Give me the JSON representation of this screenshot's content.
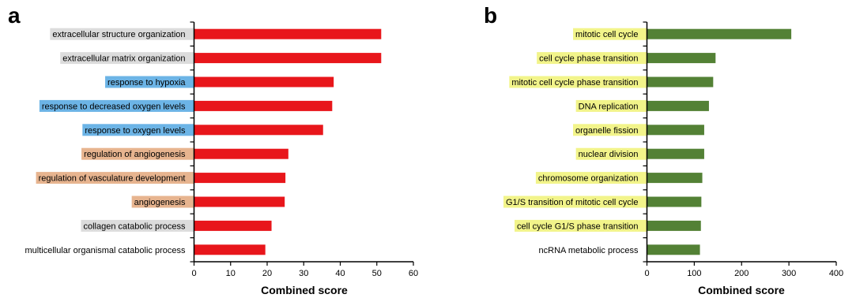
{
  "chart_data": [
    {
      "type": "bar",
      "orientation": "horizontal",
      "panel_label": "a",
      "xlabel": "Combined score",
      "xlim": [
        0,
        60
      ],
      "xticks": [
        0,
        10,
        20,
        30,
        40,
        50,
        60
      ],
      "bar_color": "#e8161b",
      "categories": [
        "extracellular structure organization",
        "extracellular matrix organization",
        "response to hypoxia",
        "response to decreased oxygen levels",
        "response to oxygen levels",
        "regulation of angiogenesis",
        "regulation of vasculature development",
        "angiogenesis",
        "collagen catabolic process",
        "multicellular organismal catabolic process"
      ],
      "values": [
        51.2,
        51.2,
        38.2,
        37.8,
        35.3,
        25.8,
        25.0,
        24.8,
        21.2,
        19.5
      ],
      "label_highlights": [
        "#dcdcdc",
        "#dcdcdc",
        "#6cb4e6",
        "#6cb4e6",
        "#6cb4e6",
        "#e7b48f",
        "#e7b48f",
        "#e7b48f",
        "#dcdcdc",
        ""
      ]
    },
    {
      "type": "bar",
      "orientation": "horizontal",
      "panel_label": "b",
      "xlabel": "Combined score",
      "xlim": [
        0,
        400
      ],
      "xticks": [
        0,
        100,
        200,
        300,
        400
      ],
      "bar_color": "#538135",
      "categories": [
        "mitotic cell cycle",
        "cell cycle phase transition",
        "mitotic cell cycle phase transition",
        "DNA replication",
        "organelle fission",
        "nuclear division",
        "chromosome organization",
        "G1/S transition of mitotic cell cycle",
        "cell cycle G1/S phase transition",
        "ncRNA metabolic process"
      ],
      "values": [
        305,
        145,
        140,
        131,
        121,
        121,
        117,
        115,
        114,
        112
      ],
      "label_highlights": [
        "#f2f48a",
        "#f2f48a",
        "#f2f48a",
        "#f2f48a",
        "#f2f48a",
        "#f2f48a",
        "#f2f48a",
        "#f2f48a",
        "#f2f48a",
        ""
      ]
    }
  ]
}
